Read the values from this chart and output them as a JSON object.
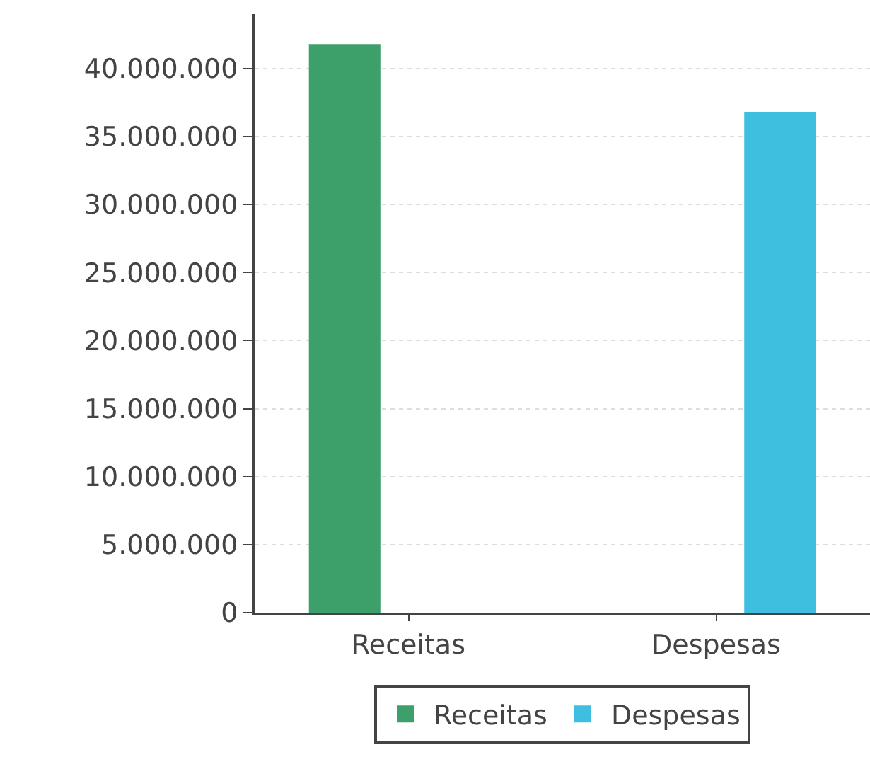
{
  "chart_data": {
    "type": "bar",
    "categories": [
      "Receitas",
      "Despesas"
    ],
    "series": [
      {
        "name": "Receitas",
        "color": "#3d9f6a",
        "values": [
          41800000,
          null
        ]
      },
      {
        "name": "Despesas",
        "color": "#3fbfdf",
        "values": [
          null,
          36800000
        ]
      }
    ],
    "ylim": [
      0,
      44000000
    ],
    "yticks": [
      {
        "value": 0,
        "label": "0"
      },
      {
        "value": 5000000,
        "label": "5.000.000"
      },
      {
        "value": 10000000,
        "label": "10.000.000"
      },
      {
        "value": 15000000,
        "label": "15.000.000"
      },
      {
        "value": 20000000,
        "label": "20.000.000"
      },
      {
        "value": 25000000,
        "label": "25.000.000"
      },
      {
        "value": 30000000,
        "label": "30.000.000"
      },
      {
        "value": 35000000,
        "label": "35.000.000"
      },
      {
        "value": 40000000,
        "label": "40.000.000"
      }
    ],
    "grid": "y",
    "legend": "bottom"
  }
}
